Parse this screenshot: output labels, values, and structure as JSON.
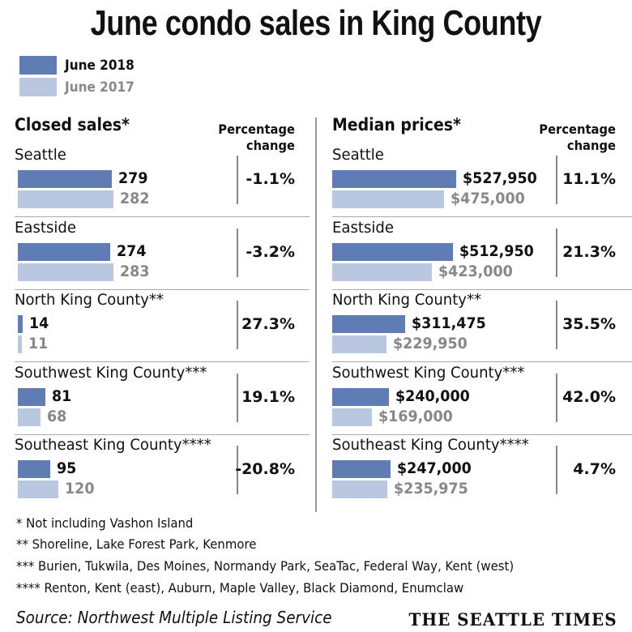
{
  "chart_data": {
    "type": "bar",
    "title": "June condo sales in King County",
    "legend": [
      {
        "name": "June 2018",
        "color": "#5f7db4"
      },
      {
        "name": "June 2017",
        "color": "#b9c7e1"
      }
    ],
    "categories": [
      "Seattle",
      "Eastside",
      "North King County**",
      "Southwest King County***",
      "Southeast King County****"
    ],
    "panels": [
      {
        "title": "Closed sales*",
        "pct_header": [
          "Percentage",
          "change"
        ],
        "series": [
          {
            "name": "June 2018",
            "values": [
              279,
              274,
              14,
              81,
              95
            ],
            "labels": [
              "279",
              "274",
              "14",
              "81",
              "95"
            ]
          },
          {
            "name": "June 2017",
            "values": [
              282,
              283,
              11,
              68,
              120
            ],
            "labels": [
              "282",
              "283",
              "11",
              "68",
              "120"
            ]
          }
        ],
        "pct_change": [
          "-1.1%",
          "-3.2%",
          "27.3%",
          "19.1%",
          "-20.8%"
        ]
      },
      {
        "title": "Median prices*",
        "pct_header": [
          "Percentage",
          "change"
        ],
        "series": [
          {
            "name": "June 2018",
            "values": [
              527950,
              512950,
              311475,
              240000,
              247000
            ],
            "labels": [
              "$527,950",
              "$512,950",
              "$311,475",
              "$240,000",
              "$247,000"
            ]
          },
          {
            "name": "June 2017",
            "values": [
              475000,
              423000,
              229950,
              169000,
              235975
            ],
            "labels": [
              "$475,000",
              "$423,000",
              "$229,950",
              "$169,000",
              "$235,975"
            ]
          }
        ],
        "pct_change": [
          "11.1%",
          "21.3%",
          "35.5%",
          "42.0%",
          "4.7%"
        ]
      }
    ]
  },
  "footnotes": [
    "* Not including Vashon Island",
    "**  Shoreline, Lake Forest Park, Kenmore",
    "*** Burien, Tukwila, Des Moines, Normandy Park, SeaTac, Federal Way, Kent (west)",
    "**** Renton, Kent (east), Auburn, Maple Valley, Black Diamond, Enumclaw"
  ],
  "source": "Source: Northwest Multiple Listing Service",
  "brand": "THE SEATTLE TIMES"
}
